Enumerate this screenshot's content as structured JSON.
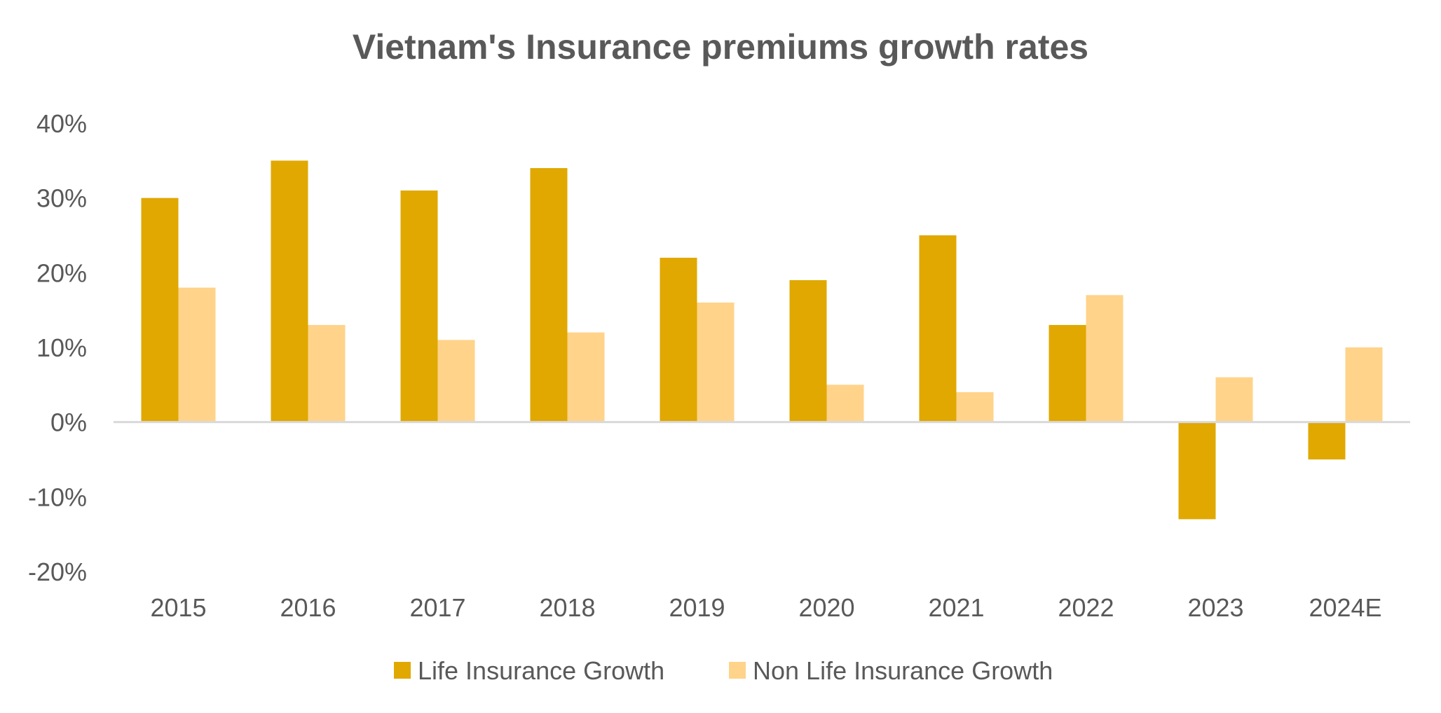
{
  "chart_data": {
    "type": "bar",
    "title": "Vietnam's Insurance premiums growth rates",
    "xlabel": "",
    "ylabel": "",
    "categories": [
      "2015",
      "2016",
      "2017",
      "2018",
      "2019",
      "2020",
      "2021",
      "2022",
      "2023",
      "2024E"
    ],
    "series": [
      {
        "name": "Life Insurance Growth",
        "color": "#E0A800",
        "values": [
          30,
          35,
          31,
          34,
          22,
          19,
          25,
          13,
          -13,
          -5
        ]
      },
      {
        "name": "Non Life Insurance Growth",
        "color": "#FFD38A",
        "values": [
          18,
          13,
          11,
          12,
          16,
          5,
          4,
          17,
          6,
          10
        ]
      }
    ],
    "ylim": [
      -20,
      40
    ],
    "yticks": [
      40,
      30,
      20,
      10,
      0,
      -10,
      -20
    ],
    "ytick_labels": [
      "40%",
      "30%",
      "20%",
      "10%",
      "0%",
      "-10%",
      "-20%"
    ],
    "grid": false,
    "legend_position": "bottom",
    "zero_line_color": "#D9D9D9",
    "text_color": "#595959"
  }
}
